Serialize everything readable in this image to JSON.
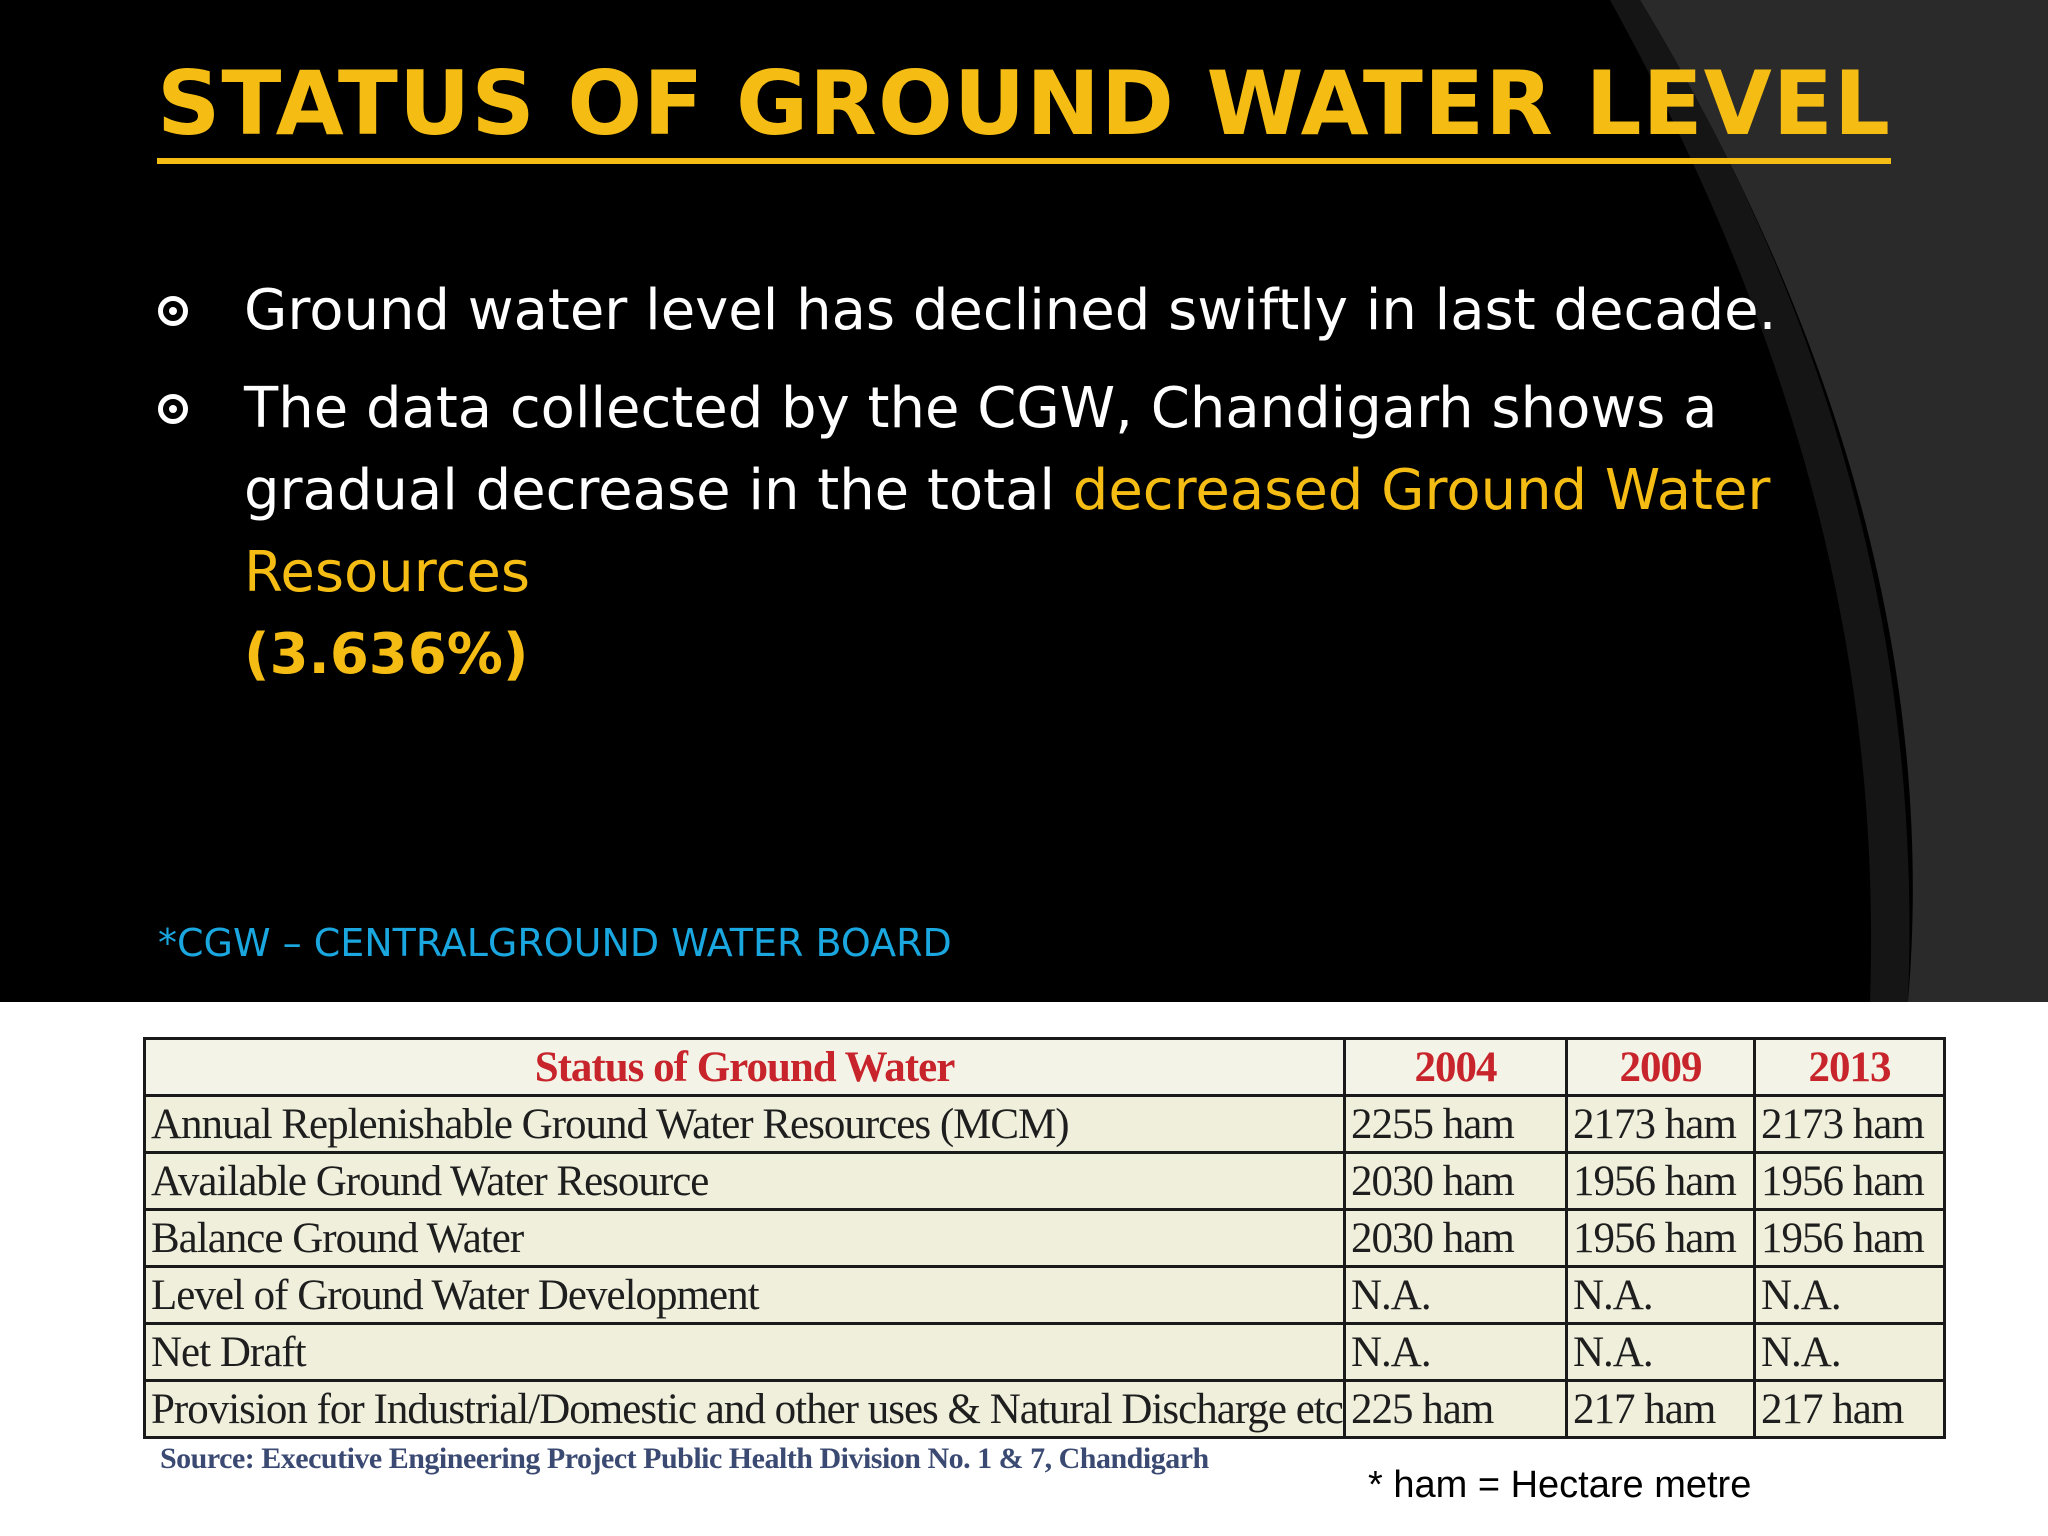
{
  "slide": {
    "title": "STATUS OF GROUND WATER LEVEL",
    "bullets": [
      {
        "text": "Ground water level has declined swiftly in last decade."
      },
      {
        "text": "The data collected by the CGW, Chandigarh shows a gradual decrease in the total ",
        "highlight": "decreased Ground Water Resources",
        "highlight_bold": "(3.636%)"
      }
    ],
    "abbreviation_note": "*CGW – CENTRALGROUND WATER BOARD"
  },
  "table": {
    "headers": [
      "Status of Ground Water",
      "2004",
      "2009",
      "2013"
    ],
    "rows": [
      [
        "Annual Replenishable Ground Water Resources (MCM)",
        "2255 ham",
        "2173 ham",
        "2173 ham"
      ],
      [
        "Available Ground Water Resource",
        "2030 ham",
        "1956 ham",
        "1956 ham"
      ],
      [
        "Balance Ground Water",
        "2030 ham",
        "1956 ham",
        "1956 ham"
      ],
      [
        "Level of Ground Water Development",
        "N.A.",
        "N.A.",
        "N.A."
      ],
      [
        "Net Draft",
        "N.A.",
        "N.A.",
        "N.A."
      ],
      [
        "Provision for Industrial/Domestic and other uses & Natural Discharge etc",
        "225 ham",
        "217 ham",
        "217 ham"
      ]
    ],
    "source": "Source: Executive Engineering Project Public Health Division No. 1 & 7, Chandigarh",
    "unit_note": "* ham = Hectare metre"
  },
  "colors": {
    "background": "#000000",
    "title": "#f5bd14",
    "highlight": "#f5bd14",
    "note": "#1aa7e0",
    "table_header": "#c8242b",
    "table_bg": "#efefdc"
  }
}
